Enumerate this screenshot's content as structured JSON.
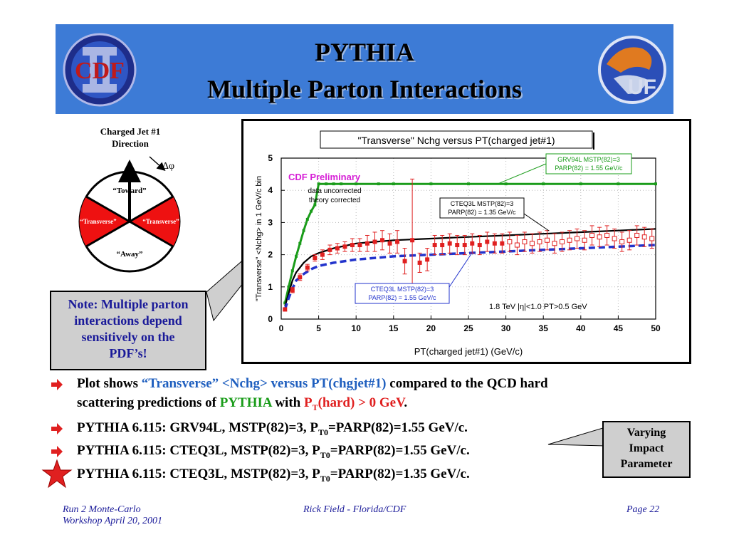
{
  "slide": {
    "title_line1": "PYTHIA",
    "title_line2": "Multiple Parton Interactions",
    "logo_left": "CDF",
    "logo_right": "UF"
  },
  "diagram": {
    "direction_label_line1": "Charged Jet #1",
    "direction_label_line2": "Direction",
    "delta_phi": "Δφ",
    "toward": "“Toward”",
    "transverse_left": "“Transverse”",
    "transverse_right": "“Transverse”",
    "away": "“Away”"
  },
  "note": {
    "line1": "Note: Multiple parton",
    "line2": "interactions depend",
    "line3": "sensitively on the",
    "line4": "PDF’s!"
  },
  "callout": {
    "line1": "Varying",
    "line2": "Impact",
    "line3": "Parameter"
  },
  "bullets": {
    "b1_a": "Plot shows ",
    "b1_b": "“Transverse” <Nchg> versus PT(chgjet#1)",
    "b1_c": " compared to the QCD hard",
    "b1_d": "scattering predictions of ",
    "b1_e": "PYTHIA",
    "b1_f": " with ",
    "b1_g": "P",
    "b1_h": "T",
    "b1_i": "(hard) > 0 GeV",
    "b1_j": ".",
    "b2_a": "PYTHIA 6.115: GRV94L, MSTP(82)=3, P",
    "b2_sub": "T0",
    "b2_b": "=PARP(82)=1.55 GeV/c.",
    "b3_a": "PYTHIA 6.115: CTEQ3L, MSTP(82)=3, P",
    "b3_sub": "T0",
    "b3_b": "=PARP(82)=1.55 GeV/c.",
    "b4_a": "PYTHIA 6.115: CTEQ3L, MSTP(82)=3, P",
    "b4_sub": "T0",
    "b4_b": "=PARP(82)=1.35 GeV/c."
  },
  "footer": {
    "left_line1": "Run 2 Monte-Carlo",
    "left_line2": "Workshop April 20, 2001",
    "center": "Rick Field - Florida/CDF",
    "right": "Page 22"
  },
  "colors": {
    "banner": "#3d7bd6",
    "data": "#e02020",
    "grv94l": "#1a9c1a",
    "cteq155": "#2233cc",
    "cteq135": "#000000",
    "cdf_preliminary": "#d61fd6"
  },
  "chart_data": {
    "type": "scatter",
    "title": "\"Transverse\" Nchg versus PT(charged jet#1)",
    "xlabel": "PT(charged jet#1)  (GeV/c)",
    "ylabel": "\"Transverse\" <Nchg> in 1 GeV/c bin",
    "xlim": [
      0,
      50
    ],
    "ylim": [
      0,
      5
    ],
    "xticks": [
      0,
      5,
      10,
      15,
      20,
      25,
      30,
      35,
      40,
      45,
      50
    ],
    "yticks": [
      0,
      1,
      2,
      3,
      4,
      5
    ],
    "annotations": {
      "preliminary": "CDF Preliminary",
      "uncorrected_line1": "data uncorrected",
      "uncorrected_line2": "theory corrected",
      "cuts": "1.8 TeV |η|<1.0 PT>0.5 GeV",
      "grv_label_line1": "GRV94L MSTP(82)=3",
      "grv_label_line2": "PARP(82) = 1.55 GeV/c",
      "cteq135_label_line1": "CTEQ3L MSTP(82)=3",
      "cteq135_label_line2": "PARP(82) = 1.35 GeV/c",
      "cteq155_label_line1": "CTEQ3L MSTP(82)=3",
      "cteq155_label_line2": "PARP(82) = 1.55 GeV/c"
    },
    "series": [
      {
        "name": "data",
        "x": [
          0.5,
          1.5,
          2.5,
          3.5,
          4.5,
          5.5,
          6.5,
          7.5,
          8.5,
          9.5,
          10.5,
          11.5,
          12.5,
          13.5,
          14.5,
          15.5,
          16.5,
          17.5,
          18.5,
          19.5,
          20.5,
          21.5,
          22.5,
          23.5,
          24.5,
          25.5,
          26.5,
          27.5,
          28.5,
          29.5,
          30.5,
          31.5,
          32.5,
          33.5,
          34.5,
          35.5,
          36.5,
          37.5,
          38.5,
          39.5,
          40.5,
          41.5,
          42.5,
          43.5,
          44.5,
          45.5,
          46.5,
          47.5,
          48.5,
          49.5
        ],
        "y": [
          0.3,
          0.9,
          1.3,
          1.6,
          1.9,
          2.0,
          2.15,
          2.2,
          2.25,
          2.3,
          2.3,
          2.35,
          2.4,
          2.45,
          2.35,
          2.4,
          1.8,
          2.45,
          1.75,
          1.85,
          2.3,
          2.3,
          2.35,
          2.3,
          2.3,
          2.35,
          2.3,
          2.4,
          2.35,
          2.35,
          2.4,
          2.3,
          2.4,
          2.35,
          2.4,
          2.45,
          2.35,
          2.4,
          2.45,
          2.5,
          2.45,
          2.6,
          2.55,
          2.6,
          2.5,
          2.4,
          2.45,
          2.6,
          2.55,
          2.5
        ],
        "yerr": [
          0.05,
          0.08,
          0.1,
          0.1,
          0.1,
          0.15,
          0.15,
          0.15,
          0.15,
          0.2,
          0.2,
          0.25,
          0.3,
          0.3,
          0.3,
          0.35,
          0.4,
          1.9,
          0.3,
          0.35,
          0.3,
          0.3,
          0.3,
          0.3,
          0.3,
          0.3,
          0.3,
          0.3,
          0.3,
          0.3,
          0.3,
          0.3,
          0.3,
          0.3,
          0.3,
          0.3,
          0.3,
          0.3,
          0.3,
          0.3,
          0.3,
          0.3,
          0.3,
          0.3,
          0.3,
          0.3,
          0.3,
          0.3,
          0.3,
          0.3
        ]
      },
      {
        "name": "GRV94L MSTP(82)=3 PARP(82) = 1.55 GeV/c",
        "x": [
          0.5,
          1,
          1.5,
          2,
          2.5,
          3,
          3.5,
          4,
          4.5,
          5,
          6,
          7,
          8,
          10,
          13,
          15,
          20,
          25,
          30,
          35,
          40,
          45,
          50
        ],
        "y": [
          0.5,
          1,
          1.5,
          1.95,
          2.35,
          2.75,
          3.1,
          3.35,
          3.55,
          4.2,
          4.2,
          4.2,
          4.2,
          4.2,
          4.2,
          4.2,
          4.2,
          4.2,
          4.2,
          4.2,
          4.2,
          4.2,
          4.2
        ]
      },
      {
        "name": "CTEQ3L MSTP(82)=3 PARP(82) = 1.35 GeV/c",
        "x": [
          0.5,
          1,
          1.5,
          2,
          3,
          4,
          5,
          7,
          10,
          15,
          20,
          25,
          30,
          35,
          40,
          45,
          50
        ],
        "y": [
          0.4,
          0.8,
          1.2,
          1.45,
          1.75,
          1.95,
          2.05,
          2.2,
          2.35,
          2.45,
          2.5,
          2.55,
          2.6,
          2.65,
          2.7,
          2.75,
          2.8
        ]
      },
      {
        "name": "CTEQ3L MSTP(82)=3 PARP(82) = 1.55 GeV/c",
        "x": [
          0.5,
          1,
          1.5,
          2,
          3,
          4,
          5,
          7,
          10,
          15,
          20,
          25,
          30,
          35,
          40,
          45,
          50
        ],
        "y": [
          0.3,
          0.65,
          0.95,
          1.2,
          1.4,
          1.55,
          1.65,
          1.75,
          1.85,
          1.95,
          2.0,
          2.05,
          2.1,
          2.15,
          2.2,
          2.25,
          2.3
        ]
      }
    ]
  }
}
